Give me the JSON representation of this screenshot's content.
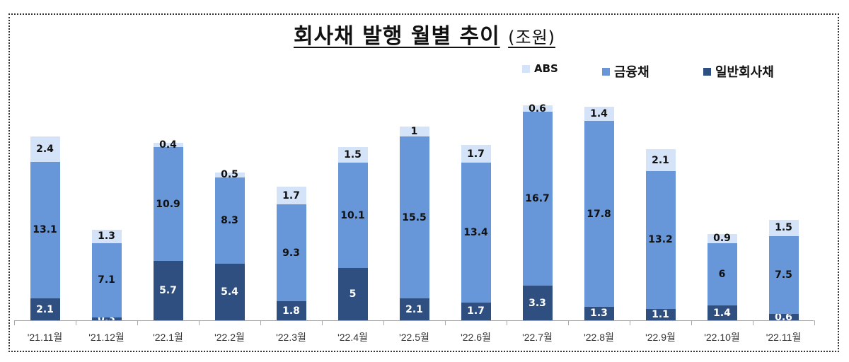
{
  "title": {
    "main": "회사채 발행 월별 추이",
    "unit": "(조원)"
  },
  "legend": [
    {
      "label": "ABS",
      "color": "#d4e3f8",
      "key": "abs"
    },
    {
      "label": "금융채",
      "color": "#6797d8",
      "key": "fin"
    },
    {
      "label": "일반회사채",
      "color": "#2f4f80",
      "key": "corp"
    }
  ],
  "chart_data": {
    "type": "bar",
    "stacked": true,
    "title": "회사채 발행 월별 추이 (조원)",
    "xlabel": "",
    "ylabel": "조원",
    "categories": [
      "'21.11월",
      "'21.12월",
      "'22.1월",
      "'22.2월",
      "'22.3월",
      "'22.4월",
      "'22.5월",
      "'22.6월",
      "'22.7월",
      "'22.8월",
      "'22.9월",
      "'22.10월",
      "'22.11월"
    ],
    "series": [
      {
        "name": "일반회사채",
        "color": "#2f4f80",
        "values": [
          2.1,
          0.3,
          5.7,
          5.4,
          1.8,
          5,
          2.1,
          1.7,
          3.3,
          1.3,
          1.1,
          1.4,
          0.6
        ]
      },
      {
        "name": "금융채",
        "color": "#6797d8",
        "values": [
          13.1,
          7.1,
          10.9,
          8.3,
          9.3,
          10.1,
          15.5,
          13.4,
          16.7,
          17.8,
          13.2,
          6,
          7.5
        ]
      },
      {
        "name": "ABS",
        "color": "#d4e3f8",
        "values": [
          2.4,
          1.3,
          0.4,
          0.5,
          1.7,
          1.5,
          1,
          1.7,
          0.6,
          1.4,
          2.1,
          0.9,
          1.5
        ]
      }
    ],
    "legend_position": "top-right",
    "grid": false,
    "ylim": [
      0,
      22
    ]
  }
}
